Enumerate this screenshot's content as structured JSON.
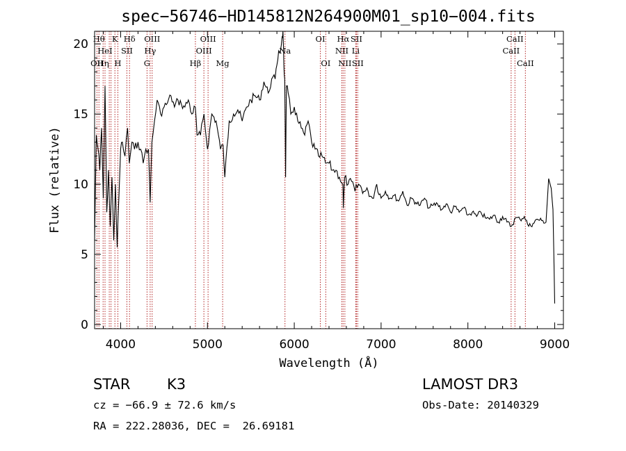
{
  "chart_data": {
    "type": "line",
    "title": "spec−56746−HD145812N264900M01_sp10−004.fits",
    "xlabel": "Wavelength (Å)",
    "ylabel": "Flux (relative)",
    "xlim": [
      3700,
      9100
    ],
    "ylim": [
      -0.3,
      20.9
    ],
    "xticks": [
      4000,
      5000,
      6000,
      7000,
      8000,
      9000
    ],
    "yticks": [
      0,
      5,
      10,
      15,
      20
    ],
    "series": [
      {
        "name": "spectrum",
        "x": [
          3700,
          3720,
          3740,
          3760,
          3780,
          3800,
          3820,
          3840,
          3860,
          3880,
          3900,
          3920,
          3940,
          3960,
          3980,
          4000,
          4020,
          4050,
          4080,
          4100,
          4130,
          4160,
          4200,
          4230,
          4260,
          4290,
          4320,
          4340,
          4360,
          4390,
          4420,
          4460,
          4500,
          4540,
          4580,
          4620,
          4660,
          4700,
          4740,
          4780,
          4820,
          4860,
          4880,
          4920,
          4960,
          5000,
          5050,
          5100,
          5150,
          5180,
          5200,
          5250,
          5300,
          5350,
          5400,
          5450,
          5500,
          5550,
          5600,
          5650,
          5700,
          5740,
          5780,
          5800,
          5820,
          5840,
          5860,
          5870,
          5880,
          5890,
          5900,
          5910,
          5930,
          5960,
          6000,
          6040,
          6080,
          6120,
          6160,
          6200,
          6240,
          6280,
          6320,
          6360,
          6400,
          6440,
          6480,
          6520,
          6560,
          6565,
          6580,
          6620,
          6660,
          6700,
          6740,
          6800,
          6850,
          6900,
          6950,
          7000,
          7050,
          7100,
          7150,
          7200,
          7250,
          7300,
          7350,
          7400,
          7450,
          7500,
          7550,
          7600,
          7650,
          7700,
          7750,
          7800,
          7850,
          7900,
          7950,
          8000,
          8050,
          8100,
          8150,
          8200,
          8250,
          8300,
          8350,
          8400,
          8450,
          8500,
          8550,
          8600,
          8650,
          8700,
          8750,
          8800,
          8850,
          8900,
          8930,
          8960,
          8980,
          9000
        ],
        "y": [
          6,
          13.5,
          12.5,
          11,
          14,
          9,
          17,
          8,
          11,
          7,
          10.5,
          6,
          10,
          5.5,
          9,
          12.5,
          13,
          12,
          14,
          11.5,
          13,
          12.5,
          13,
          12.5,
          11.5,
          12.5,
          12.5,
          8.7,
          13,
          14.5,
          16,
          15,
          15.5,
          15.8,
          16.3,
          15.5,
          16,
          15.7,
          15.5,
          16,
          15,
          15.5,
          13.5,
          13.5,
          15,
          12.5,
          15,
          14.5,
          12.5,
          12.8,
          10.5,
          14.5,
          15,
          15.3,
          14.5,
          15.5,
          16,
          16.3,
          16,
          17.3,
          16.5,
          17.5,
          17.5,
          18.5,
          19.5,
          19.5,
          20.5,
          21,
          18.5,
          17.5,
          10.5,
          17,
          16.5,
          15,
          15.5,
          14.5,
          14,
          13.5,
          14.5,
          13,
          12.5,
          12,
          12,
          11.5,
          11.5,
          11,
          11,
          10.5,
          10,
          8.3,
          10.5,
          10,
          10.2,
          9.5,
          10,
          9.5,
          9.5,
          9,
          10,
          9,
          9.5,
          9,
          9.2,
          8.8,
          9.5,
          8.5,
          9,
          8.7,
          8.5,
          9,
          8.3,
          8.5,
          8.6,
          8.2,
          8.6,
          8.0,
          8.4,
          8.0,
          8.3,
          7.8,
          8.0,
          7.7,
          8.0,
          7.6,
          7.5,
          7.8,
          7.3,
          7.7,
          7.3,
          7.0,
          7.6,
          7.5,
          7.7,
          7.0,
          7.2,
          7.5,
          7.4,
          7.3,
          10.4,
          9.7,
          8.2,
          1.5
        ]
      }
    ],
    "lines": [
      {
        "wl": 3727,
        "label": "OII",
        "row": 2
      },
      {
        "wl": 3750,
        "label": "Hθ",
        "row": 0
      },
      {
        "wl": 3798,
        "label": "Hη",
        "row": 2
      },
      {
        "wl": 3820,
        "label": "HeI",
        "row": 1
      },
      {
        "wl": 3869,
        "label": "",
        "row": -1
      },
      {
        "wl": 3889,
        "label": "",
        "row": -1
      },
      {
        "wl": 3934,
        "label": "K",
        "row": 0
      },
      {
        "wl": 3968,
        "label": "H",
        "row": 2
      },
      {
        "wl": 4072,
        "label": "SII",
        "row": 1
      },
      {
        "wl": 4102,
        "label": "Hδ",
        "row": 0
      },
      {
        "wl": 4304,
        "label": "G",
        "row": 2
      },
      {
        "wl": 4340,
        "label": "Hγ",
        "row": 1
      },
      {
        "wl": 4363,
        "label": "OIII",
        "row": 0
      },
      {
        "wl": 4861,
        "label": "Hβ",
        "row": 2
      },
      {
        "wl": 4959,
        "label": "OIII",
        "row": 1
      },
      {
        "wl": 5007,
        "label": "OIII",
        "row": 0
      },
      {
        "wl": 5175,
        "label": "Mg",
        "row": 2
      },
      {
        "wl": 5893,
        "label": "Na",
        "row": 1
      },
      {
        "wl": 6300,
        "label": "OI",
        "row": 0
      },
      {
        "wl": 6363,
        "label": "OI",
        "row": 2
      },
      {
        "wl": 6548,
        "label": "NII",
        "row": 1
      },
      {
        "wl": 6563,
        "label": "Hα",
        "row": 0
      },
      {
        "wl": 6583,
        "label": "NII",
        "row": 2
      },
      {
        "wl": 6708,
        "label": "Li",
        "row": 1
      },
      {
        "wl": 6716,
        "label": "SII",
        "row": 0
      },
      {
        "wl": 6731,
        "label": "SII",
        "row": 2
      },
      {
        "wl": 8498,
        "label": "CaII",
        "row": 1
      },
      {
        "wl": 8542,
        "label": "CaII",
        "row": 0
      },
      {
        "wl": 8662,
        "label": "CaII",
        "row": 2
      }
    ]
  },
  "info": {
    "class": "STAR",
    "subclass": "K3",
    "survey": "LAMOST DR3",
    "cz": "cz = −66.9 ± 72.6 km/s",
    "obs_date": "Obs-Date: 20140329",
    "radec": "RA = 222.28036, DEC =  26.69181"
  }
}
